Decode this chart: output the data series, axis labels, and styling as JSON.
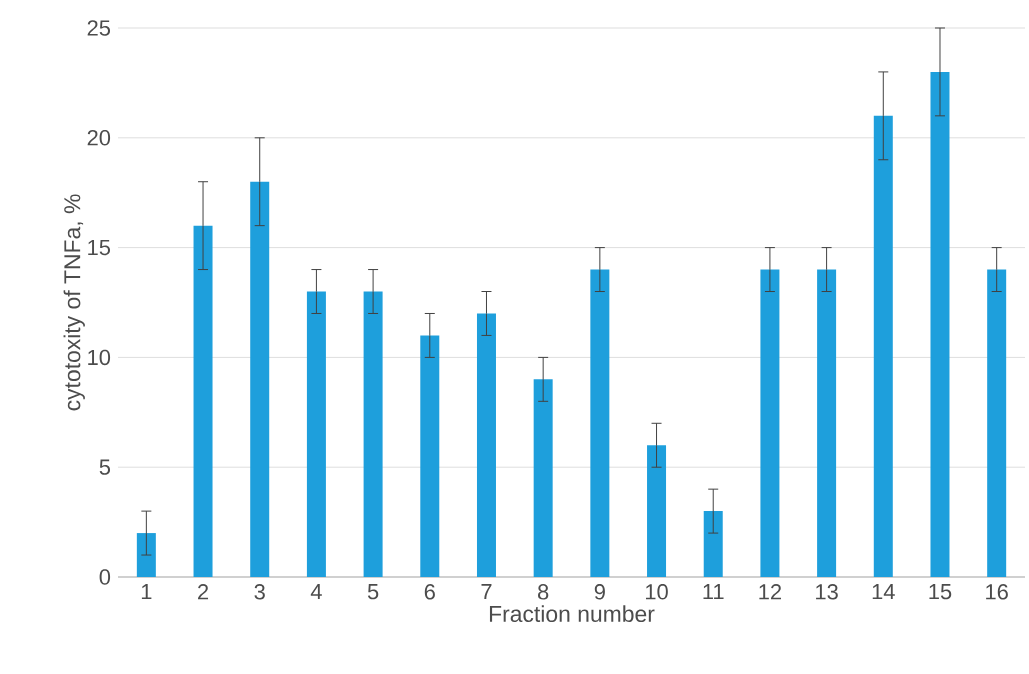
{
  "chart_data": {
    "type": "bar",
    "xlabel": "Fraction number",
    "ylabel": "cytotoxity of TNFa, %",
    "categories": [
      "1",
      "2",
      "3",
      "4",
      "5",
      "6",
      "7",
      "8",
      "9",
      "10",
      "11",
      "12",
      "13",
      "14",
      "15",
      "16"
    ],
    "values": [
      2,
      16,
      18,
      13,
      13,
      11,
      12,
      9,
      14,
      6,
      3,
      14,
      14,
      21,
      23,
      14
    ],
    "errors": [
      1,
      2,
      2,
      1,
      1,
      1,
      1,
      1,
      1,
      1,
      1,
      1,
      1,
      2,
      2,
      1
    ],
    "color": "#1e9fdc",
    "ylim": [
      0,
      25
    ],
    "yticks": [
      0,
      5,
      10,
      15,
      20,
      25
    ],
    "grid": "y"
  }
}
